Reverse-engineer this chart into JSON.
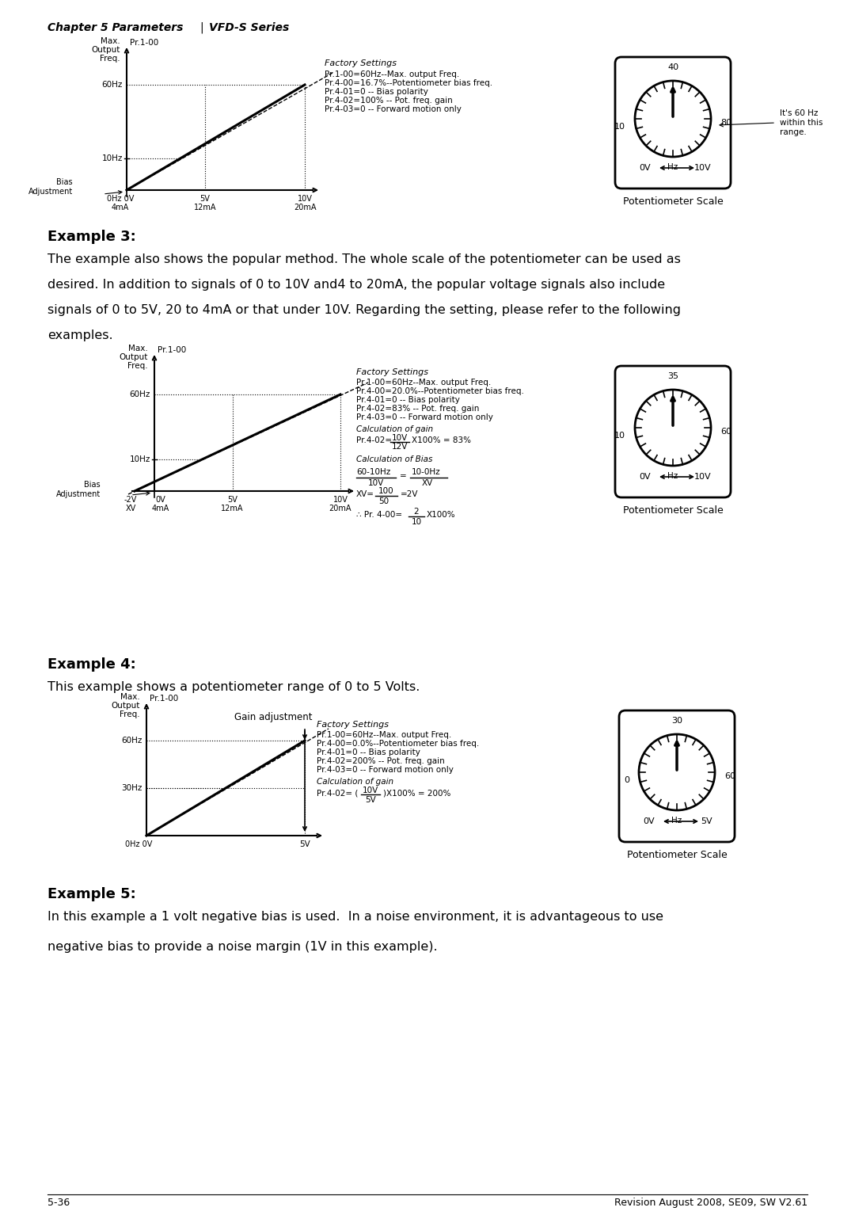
{
  "bg_color": "#ffffff",
  "footer_left": "5-36",
  "footer_right": "Revision August 2008, SE09, SW V2.61",
  "example3_heading": "Example 3:",
  "example3_text1": "The example also shows the popular method. The whole scale of the potentiometer can be used as",
  "example3_text2": "desired. In addition to signals of 0 to 10V and4 to 20mA, the popular voltage signals also include",
  "example3_text3": "signals of 0 to 5V, 20 to 4mA or that under 10V. Regarding the setting, please refer to the following",
  "example3_text4": "examples.",
  "example4_heading": "Example 4:",
  "example4_text1": "This example shows a potentiometer range of 0 to 5 Volts.",
  "example5_heading": "Example 5:",
  "example5_text1": "In this example a 1 volt negative bias is used.  In a noise environment, it is advantageous to use",
  "example5_text2": "negative bias to provide a noise margin (1V in this example)."
}
